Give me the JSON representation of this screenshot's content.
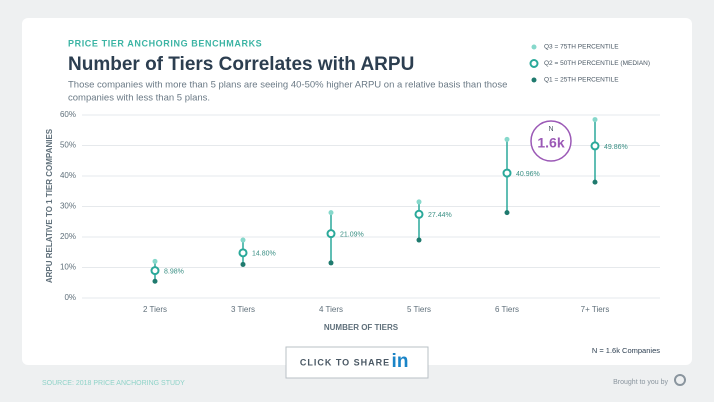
{
  "chart_data": {
    "type": "range-dot",
    "eyebrow": "PRICE TIER ANCHORING BENCHMARKS",
    "title": "Number of Tiers Correlates with ARPU",
    "subtitle": [
      "Those companies with more than 5 plans are seeing 40-50% higher ARPU on a relative basis than those",
      "companies with less than 5 plans."
    ],
    "y_label": "ARPU RELATIVE TO 1 TIER COMPANIES",
    "x_label": "NUMBER OF TIERS",
    "categories": [
      "2 Tiers",
      "3 Tiers",
      "4 Tiers",
      "5 Tiers",
      "6 Tiers",
      "7+ Tiers"
    ],
    "series": [
      {
        "name": "Q3 = 75TH PERCENTILE",
        "color": "#86d8cb",
        "values": [
          12,
          19,
          28,
          31.5,
          52,
          58.5
        ]
      },
      {
        "name": "Q2 = 50TH PERCENTILE (MEDIAN)",
        "color": "#2aa99a",
        "values": [
          8.98,
          14.8,
          21.09,
          27.44,
          40.96,
          49.86
        ],
        "value_labels": [
          "8.98%",
          "14.80%",
          "21.09%",
          "27.44%",
          "40.96%",
          "49.86%"
        ]
      },
      {
        "name": "Q1 = 25TH PERCENTILE",
        "color": "#1f7a6e",
        "values": [
          5.5,
          11,
          11.5,
          19,
          28,
          38
        ]
      }
    ],
    "ylim": [
      0,
      60
    ],
    "yticks": [
      {
        "value": 0,
        "label": "0%"
      },
      {
        "value": 10,
        "label": "10%"
      },
      {
        "value": 20,
        "label": "20%"
      },
      {
        "value": 30,
        "label": "30%"
      },
      {
        "value": 40,
        "label": "40%"
      },
      {
        "value": 50,
        "label": "50%"
      },
      {
        "value": 60,
        "label": "60%"
      }
    ],
    "grid": true,
    "badge": {
      "top": "N",
      "value": "1.6k",
      "color": "#9b59b6"
    },
    "note": "N = 1.6k Companies"
  },
  "share_button": {
    "text": "CLICK TO SHARE",
    "icon": "in"
  },
  "footer": {
    "source": "SOURCE: 2018 PRICE ANCHORING STUDY",
    "credit": "Brought to you by"
  }
}
